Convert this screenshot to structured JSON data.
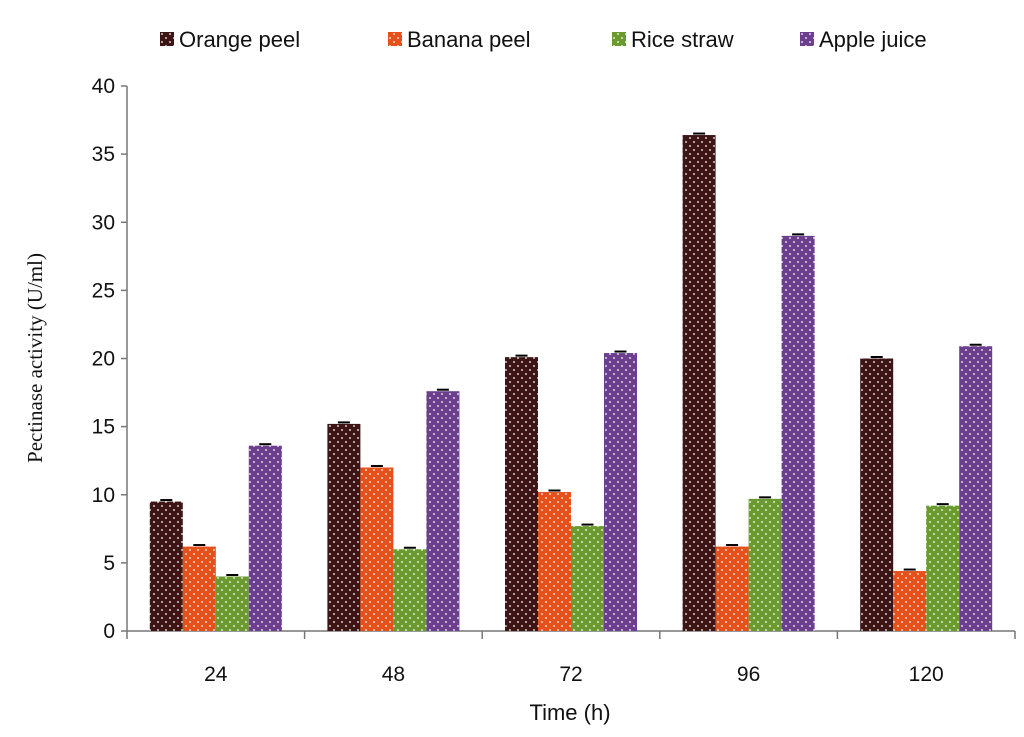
{
  "chart_data": {
    "type": "bar",
    "title": "",
    "xlabel": "Time (h)",
    "ylabel": "Pectinase activity (U/ml)",
    "categories": [
      "24",
      "48",
      "72",
      "96",
      "120"
    ],
    "ylim": [
      0,
      40
    ],
    "yticks": [
      "0",
      "5",
      "10",
      "15",
      "20",
      "25",
      "30",
      "35",
      "40"
    ],
    "grid": false,
    "legend_position": "top",
    "error_bars": true,
    "series": [
      {
        "name": "Orange peel",
        "color": "#3d1515",
        "values": [
          9.5,
          15.2,
          20.1,
          36.4,
          20.0
        ]
      },
      {
        "name": "Banana peel",
        "color": "#e5501b",
        "values": [
          6.2,
          12.0,
          10.2,
          6.2,
          4.4
        ]
      },
      {
        "name": "Rice straw",
        "color": "#6b9a30",
        "values": [
          4.0,
          6.0,
          7.7,
          9.7,
          9.2
        ]
      },
      {
        "name": "Apple juice",
        "color": "#6b3f8e",
        "values": [
          13.6,
          17.6,
          20.4,
          29.0,
          20.9
        ]
      }
    ]
  }
}
